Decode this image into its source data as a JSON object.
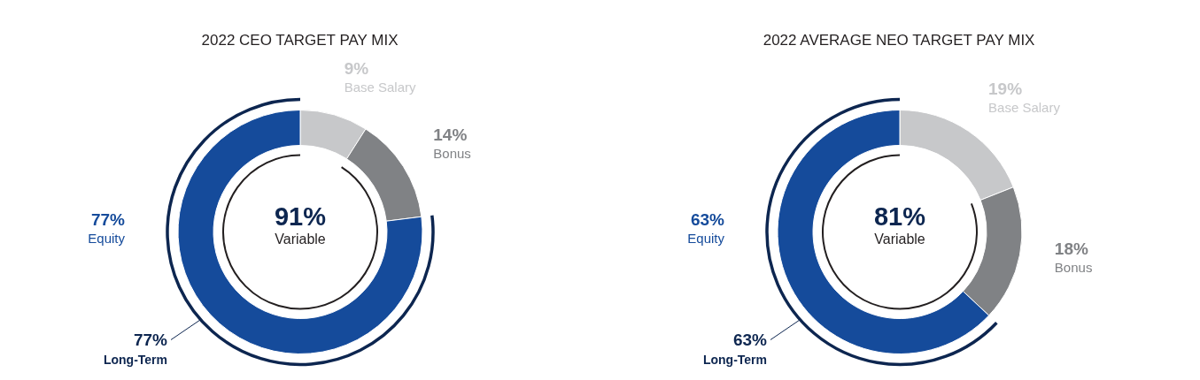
{
  "chart_data": [
    {
      "type": "donut",
      "title": "2022 CEO TARGET PAY MIX",
      "categories": [
        "Base Salary",
        "Bonus",
        "Equity"
      ],
      "values": [
        9,
        14,
        77
      ],
      "colors": [
        "#c7c8ca",
        "#808285",
        "#154b9b"
      ],
      "value_labels": [
        "9%",
        "14%",
        "77%"
      ],
      "annotations": [
        "91%",
        "Variable",
        "77%",
        "Long-Term"
      ]
    },
    {
      "type": "donut",
      "title": "2022 AVERAGE NEO TARGET PAY MIX",
      "categories": [
        "Base Salary",
        "Bonus",
        "Equity"
      ],
      "values": [
        19,
        18,
        63
      ],
      "colors": [
        "#c7c8ca",
        "#808285",
        "#154b9b"
      ],
      "value_labels": [
        "19%",
        "18%",
        "63%"
      ],
      "annotations": [
        "81%",
        "Variable",
        "63%",
        "Long-Term"
      ]
    }
  ]
}
